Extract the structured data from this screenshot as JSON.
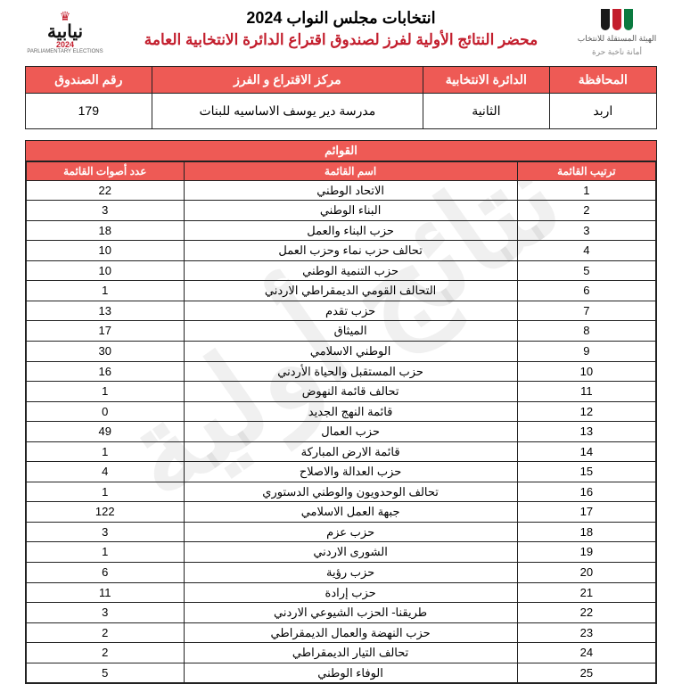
{
  "watermark": "نتائج أولية",
  "header": {
    "title_main": "انتخابات مجلس النواب 2024",
    "title_sub": "محضر النتائج الأولية لفرز لصندوق اقتراع الدائرة الانتخابية العامة",
    "logo_right_text": "الهيئة المستقلة للانتخاب",
    "logo_right_tag": "أمانة ناخبة حرة",
    "logo_left_word": "نيابية",
    "logo_left_year": "2024",
    "logo_left_sub": "PARLIAMENTARY ELECTIONS"
  },
  "info": {
    "headers": {
      "governorate": "المحافظة",
      "district": "الدائرة الانتخابية",
      "center": "مركز الاقتراع و الفرز",
      "box": "رقم الصندوق"
    },
    "values": {
      "governorate": "اربد",
      "district": "الثانية",
      "center": "مدرسة دير يوسف الاساسيه للبنات",
      "box": "179"
    }
  },
  "lists": {
    "title": "القوائم",
    "headers": {
      "rank": "ترتيب القائمة",
      "name": "اسم القائمة",
      "votes": "عدد أصوات القائمة"
    },
    "rows": [
      {
        "rank": "1",
        "name": "الاتحاد الوطني",
        "votes": "22"
      },
      {
        "rank": "2",
        "name": "البناء الوطني",
        "votes": "3"
      },
      {
        "rank": "3",
        "name": "حزب البناء والعمل",
        "votes": "18"
      },
      {
        "rank": "4",
        "name": "تحالف حزب نماء وحزب العمل",
        "votes": "10"
      },
      {
        "rank": "5",
        "name": "حزب التنمية الوطني",
        "votes": "10"
      },
      {
        "rank": "6",
        "name": "التحالف القومي الديمقراطي الاردني",
        "votes": "1"
      },
      {
        "rank": "7",
        "name": "حزب تقدم",
        "votes": "13"
      },
      {
        "rank": "8",
        "name": "الميثاق",
        "votes": "17"
      },
      {
        "rank": "9",
        "name": "الوطني الاسلامي",
        "votes": "30"
      },
      {
        "rank": "10",
        "name": "حزب المستقبل والحياة الأردني",
        "votes": "16"
      },
      {
        "rank": "11",
        "name": "تحالف قائمة النهوض",
        "votes": "1"
      },
      {
        "rank": "12",
        "name": "قائمة النهج الجديد",
        "votes": "0"
      },
      {
        "rank": "13",
        "name": "حزب العمال",
        "votes": "49"
      },
      {
        "rank": "14",
        "name": "قائمة الارض المباركة",
        "votes": "1"
      },
      {
        "rank": "15",
        "name": "حزب العدالة والاصلاح",
        "votes": "4"
      },
      {
        "rank": "16",
        "name": "تحالف الوحدويون والوطني الدستوري",
        "votes": "1"
      },
      {
        "rank": "17",
        "name": "جبهة العمل الاسلامي",
        "votes": "122"
      },
      {
        "rank": "18",
        "name": "حزب عزم",
        "votes": "3"
      },
      {
        "rank": "19",
        "name": "الشورى الاردني",
        "votes": "1"
      },
      {
        "rank": "20",
        "name": "حزب رؤية",
        "votes": "6"
      },
      {
        "rank": "21",
        "name": "حزب إرادة",
        "votes": "11"
      },
      {
        "rank": "22",
        "name": "طريقنا- الحزب الشيوعي الاردني",
        "votes": "3"
      },
      {
        "rank": "23",
        "name": "حزب النهضة والعمال الديمقراطي",
        "votes": "2"
      },
      {
        "rank": "24",
        "name": "تحالف التيار الديمقراطي",
        "votes": "2"
      },
      {
        "rank": "25",
        "name": "الوفاء الوطني",
        "votes": "5"
      }
    ]
  },
  "styling": {
    "accent": "#ee5a55",
    "red": "#c31e2d",
    "border": "#222222",
    "watermark_opacity": 0.06
  }
}
